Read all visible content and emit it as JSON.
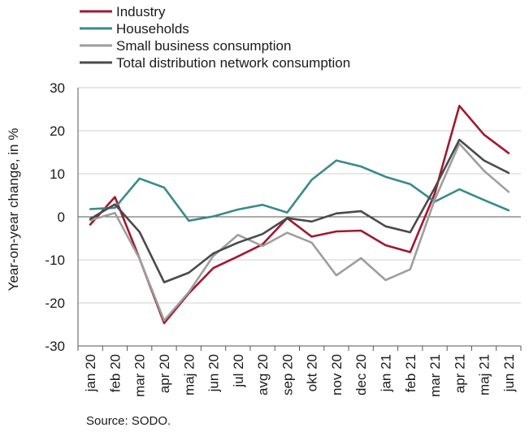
{
  "chart_data": {
    "type": "line",
    "title": "",
    "xlabel": "",
    "ylabel": "Year-on-year change, in %",
    "ylim": [
      -30,
      30
    ],
    "yticks": [
      -30,
      -20,
      -10,
      0,
      10,
      20,
      30
    ],
    "grid": "horizontal",
    "legend_position": "top-left",
    "categories": [
      "jan 20",
      "feb 20",
      "mar 20",
      "apr 20",
      "maj 20",
      "jun 20",
      "jul 20",
      "avg 20",
      "sep 20",
      "okt 20",
      "nov 20",
      "dec 20",
      "jan 21",
      "feb 21",
      "mar 21",
      "apr 21",
      "maj 21",
      "jun 21"
    ],
    "series": [
      {
        "name": "Industry",
        "color": "#a0192e",
        "values": [
          -1.8,
          4.6,
          -9.7,
          -24.7,
          -17.8,
          -11.9,
          -9.2,
          -6.4,
          -0.3,
          -4.6,
          -3.4,
          -3.2,
          -6.6,
          -8.2,
          5.4,
          25.8,
          19.1,
          14.8
        ]
      },
      {
        "name": "Households",
        "color": "#3a8a8a",
        "values": [
          1.8,
          2.1,
          8.9,
          6.8,
          -0.9,
          0.1,
          1.7,
          2.8,
          1.0,
          8.6,
          13.1,
          11.7,
          9.3,
          7.6,
          3.5,
          6.4,
          3.9,
          1.5
        ]
      },
      {
        "name": "Small business consumption",
        "color": "#9e9e9e",
        "values": [
          -0.8,
          0.9,
          -9.7,
          -24.1,
          -17.5,
          -9.1,
          -4.2,
          -6.8,
          -3.7,
          -6.0,
          -13.6,
          -9.6,
          -14.7,
          -12.2,
          4.0,
          17.0,
          10.7,
          5.8
        ]
      },
      {
        "name": "Total distribution network consumption",
        "color": "#4a4a4a",
        "values": [
          -0.5,
          2.9,
          -3.5,
          -15.2,
          -13.0,
          -8.5,
          -6.0,
          -4.0,
          -0.3,
          -1.1,
          0.8,
          1.3,
          -2.2,
          -3.6,
          6.7,
          17.9,
          13.1,
          10.2
        ]
      }
    ],
    "source": "Source: SODO."
  }
}
